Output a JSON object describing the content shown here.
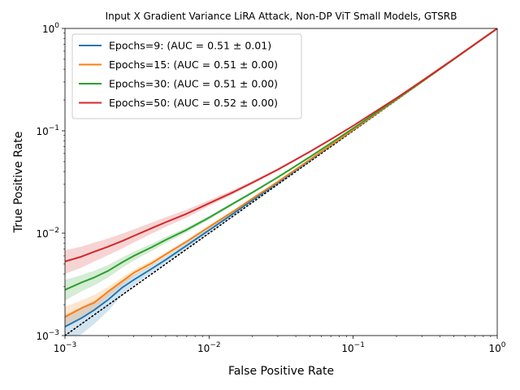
{
  "chart_data": {
    "type": "line",
    "title": "Input X Gradient Variance LiRA Attack, Non-DP ViT Small Models, GTSRB",
    "xlabel": "False Positive Rate",
    "ylabel": "True Positive Rate",
    "xscale": "log",
    "yscale": "log",
    "xlim": [
      0.001,
      1
    ],
    "ylim": [
      0.001,
      1
    ],
    "grid": false,
    "legend_position": "top-left",
    "x_ticks": [
      {
        "value": 0.001,
        "base": "10",
        "exp": "−3"
      },
      {
        "value": 0.01,
        "base": "10",
        "exp": "−2"
      },
      {
        "value": 0.1,
        "base": "10",
        "exp": "−1"
      },
      {
        "value": 1,
        "base": "10",
        "exp": "0"
      }
    ],
    "y_ticks": [
      {
        "value": 0.001,
        "base": "10",
        "exp": "−3"
      },
      {
        "value": 0.01,
        "base": "10",
        "exp": "−2"
      },
      {
        "value": 0.1,
        "base": "10",
        "exp": "−1"
      },
      {
        "value": 1,
        "base": "10",
        "exp": "0"
      }
    ],
    "reference_line": {
      "style": "dotted",
      "color": "#000000",
      "x": [
        0.001,
        1
      ],
      "y": [
        0.001,
        1
      ]
    },
    "series": [
      {
        "name": "Epochs=9: (AUC = 0.51 ± 0.01)",
        "color": "#1f77b4",
        "x": [
          0.001,
          0.0013,
          0.0016,
          0.002,
          0.0025,
          0.003,
          0.004,
          0.005,
          0.007,
          0.01,
          0.015,
          0.02,
          0.03,
          0.05,
          0.07,
          0.1,
          0.2,
          0.3,
          0.5,
          0.7,
          1
        ],
        "y": [
          0.00122,
          0.00148,
          0.00178,
          0.00225,
          0.00295,
          0.0035,
          0.0045,
          0.0055,
          0.0076,
          0.0107,
          0.0158,
          0.021,
          0.031,
          0.0515,
          0.072,
          0.102,
          0.202,
          0.302,
          0.501,
          0.701,
          1
        ],
        "y_low": [
          0.00085,
          0.00103,
          0.0013,
          0.00175,
          0.0025,
          0.0031,
          0.0041,
          0.0051,
          0.0071,
          0.0102,
          0.0153,
          0.0204,
          0.0302,
          0.0505,
          0.071,
          0.1005,
          0.2,
          0.3,
          0.5,
          0.7,
          1
        ],
        "y_high": [
          0.0016,
          0.0019,
          0.0022,
          0.0027,
          0.0034,
          0.0039,
          0.0049,
          0.0059,
          0.0081,
          0.0112,
          0.0163,
          0.0216,
          0.0318,
          0.0525,
          0.073,
          0.1035,
          0.204,
          0.304,
          0.502,
          0.702,
          1
        ]
      },
      {
        "name": "Epochs=15: (AUC = 0.51 ± 0.00)",
        "color": "#ff7f0e",
        "x": [
          0.001,
          0.0013,
          0.0016,
          0.002,
          0.0025,
          0.003,
          0.004,
          0.005,
          0.007,
          0.01,
          0.015,
          0.02,
          0.03,
          0.05,
          0.07,
          0.1,
          0.2,
          0.3,
          0.5,
          0.7,
          1
        ],
        "y": [
          0.00152,
          0.00185,
          0.0021,
          0.0027,
          0.0034,
          0.0041,
          0.0051,
          0.0062,
          0.0083,
          0.0115,
          0.0166,
          0.0218,
          0.0318,
          0.0522,
          0.0725,
          0.1025,
          0.2025,
          0.302,
          0.501,
          0.701,
          1
        ],
        "y_low": [
          0.0012,
          0.0015,
          0.0018,
          0.0024,
          0.0031,
          0.0038,
          0.0048,
          0.0059,
          0.008,
          0.0111,
          0.0162,
          0.0213,
          0.0313,
          0.0515,
          0.0718,
          0.1015,
          0.2015,
          0.301,
          0.5005,
          0.7005,
          1
        ],
        "y_high": [
          0.0019,
          0.0022,
          0.0025,
          0.003,
          0.0037,
          0.0044,
          0.0054,
          0.0065,
          0.0086,
          0.0119,
          0.017,
          0.0223,
          0.0323,
          0.0529,
          0.0732,
          0.1035,
          0.2035,
          0.303,
          0.5015,
          0.7015,
          1
        ]
      },
      {
        "name": "Epochs=30: (AUC = 0.51 ± 0.00)",
        "color": "#2ca02c",
        "x": [
          0.001,
          0.0013,
          0.0016,
          0.002,
          0.0025,
          0.003,
          0.004,
          0.005,
          0.007,
          0.01,
          0.015,
          0.02,
          0.03,
          0.05,
          0.07,
          0.1,
          0.2,
          0.3,
          0.5,
          0.7,
          1
        ],
        "y": [
          0.0028,
          0.0033,
          0.0037,
          0.0043,
          0.0052,
          0.006,
          0.0073,
          0.0086,
          0.0108,
          0.0142,
          0.0198,
          0.025,
          0.0352,
          0.0555,
          0.0758,
          0.1058,
          0.2045,
          0.3035,
          0.502,
          0.701,
          1
        ],
        "y_low": [
          0.0022,
          0.0027,
          0.0031,
          0.0037,
          0.0046,
          0.0054,
          0.0067,
          0.008,
          0.0102,
          0.0136,
          0.0192,
          0.0244,
          0.0346,
          0.0548,
          0.075,
          0.105,
          0.2038,
          0.303,
          0.5015,
          0.7005,
          1
        ],
        "y_high": [
          0.0035,
          0.0039,
          0.0043,
          0.0049,
          0.0058,
          0.0066,
          0.0079,
          0.0092,
          0.0114,
          0.0148,
          0.0204,
          0.0256,
          0.0358,
          0.0562,
          0.0766,
          0.1066,
          0.2052,
          0.304,
          0.5025,
          0.7015,
          1
        ]
      },
      {
        "name": "Epochs=50: (AUC = 0.52 ± 0.00)",
        "color": "#d62728",
        "x": [
          0.001,
          0.0013,
          0.0016,
          0.002,
          0.0025,
          0.003,
          0.004,
          0.005,
          0.007,
          0.01,
          0.015,
          0.02,
          0.03,
          0.05,
          0.07,
          0.1,
          0.2,
          0.3,
          0.5,
          0.7,
          1
        ],
        "y": [
          0.0053,
          0.0059,
          0.0066,
          0.0074,
          0.0084,
          0.0094,
          0.0112,
          0.0128,
          0.0155,
          0.0196,
          0.0255,
          0.0312,
          0.0418,
          0.0625,
          0.0825,
          0.112,
          0.209,
          0.307,
          0.504,
          0.702,
          1
        ],
        "y_low": [
          0.004,
          0.0046,
          0.0053,
          0.0061,
          0.0071,
          0.0081,
          0.0099,
          0.0115,
          0.0142,
          0.0184,
          0.0244,
          0.0302,
          0.0408,
          0.0615,
          0.0815,
          0.111,
          0.208,
          0.306,
          0.5035,
          0.7015,
          1
        ],
        "y_high": [
          0.0068,
          0.0074,
          0.0081,
          0.0089,
          0.0099,
          0.0109,
          0.0127,
          0.0143,
          0.017,
          0.021,
          0.0268,
          0.0324,
          0.043,
          0.0636,
          0.0836,
          0.113,
          0.21,
          0.308,
          0.5045,
          0.7025,
          1
        ]
      }
    ]
  }
}
